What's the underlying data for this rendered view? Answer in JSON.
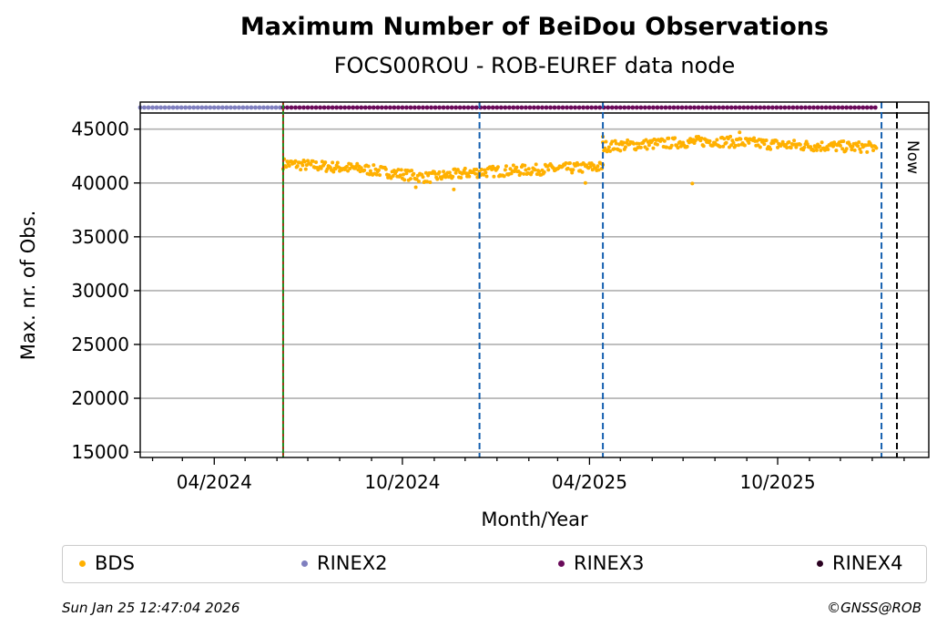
{
  "chart_data": {
    "type": "scatter",
    "title": "Maximum Number of BeiDou Observations",
    "subtitle": "FOCS00ROU - ROB-EUREF data node",
    "xlabel": "Month/Year",
    "ylabel": "Max. nr. of Obs.",
    "x_ticks": [
      "04/2024",
      "10/2024",
      "04/2025",
      "10/2025"
    ],
    "y_ticks": [
      15000,
      20000,
      25000,
      30000,
      35000,
      40000,
      45000
    ],
    "ylim": [
      14500,
      46500
    ],
    "x_range": [
      "2024-01-20",
      "2026-02-25"
    ],
    "grid": "horizontal",
    "now_label": "Now",
    "now_date": "2026-01-25",
    "data_start": "2024-06-07",
    "data_end": "2026-01-05",
    "series": [
      {
        "name": "BDS",
        "color": "#ffb000",
        "segments": [
          {
            "from": "2024-06-07",
            "to": "2025-04-14",
            "trend": [
              [
                0,
                41800
              ],
              [
                0.25,
                41300
              ],
              [
                0.45,
                40500
              ],
              [
                0.6,
                41000
              ],
              [
                1,
                41500
              ]
            ]
          },
          {
            "from": "2025-04-14",
            "to": "2026-01-05",
            "trend": [
              [
                0,
                43400
              ],
              [
                0.4,
                43900
              ],
              [
                0.7,
                43500
              ],
              [
                1,
                43300
              ]
            ]
          }
        ],
        "outliers": [
          [
            "2025-07-10",
            39950
          ],
          [
            "2024-10-14",
            39600
          ],
          [
            "2024-11-20",
            39400
          ],
          [
            "2025-03-28",
            40000
          ],
          [
            "2025-04-14",
            44300
          ],
          [
            "2025-08-25",
            44700
          ]
        ]
      },
      {
        "name": "RINEX2",
        "color": "#7f7fbf",
        "from": "2024-01-20",
        "to": "2024-06-07"
      },
      {
        "name": "RINEX3",
        "color": "#6a0a5a",
        "from": "2024-06-07",
        "to": "2026-01-05"
      },
      {
        "name": "RINEX4",
        "color": "#2a0020"
      }
    ],
    "vertical_lines": [
      {
        "date": "2024-06-07",
        "style": "solid-green-red-dashed"
      },
      {
        "date": "2024-12-15",
        "style": "blue-dashed"
      },
      {
        "date": "2025-04-14",
        "style": "blue-dashed"
      },
      {
        "date": "2026-01-10",
        "style": "blue-dashed"
      },
      {
        "date": "2026-01-25",
        "style": "black-dashed"
      }
    ]
  },
  "legend": {
    "items": [
      {
        "label": "BDS",
        "color": "#ffb000"
      },
      {
        "label": "RINEX2",
        "color": "#7f7fbf"
      },
      {
        "label": "RINEX3",
        "color": "#6a0a5a"
      },
      {
        "label": "RINEX4",
        "color": "#2a0020"
      }
    ]
  },
  "footer": {
    "timestamp": "Sun Jan 25 12:47:04 2026",
    "copyright": "©GNSS@ROB"
  }
}
